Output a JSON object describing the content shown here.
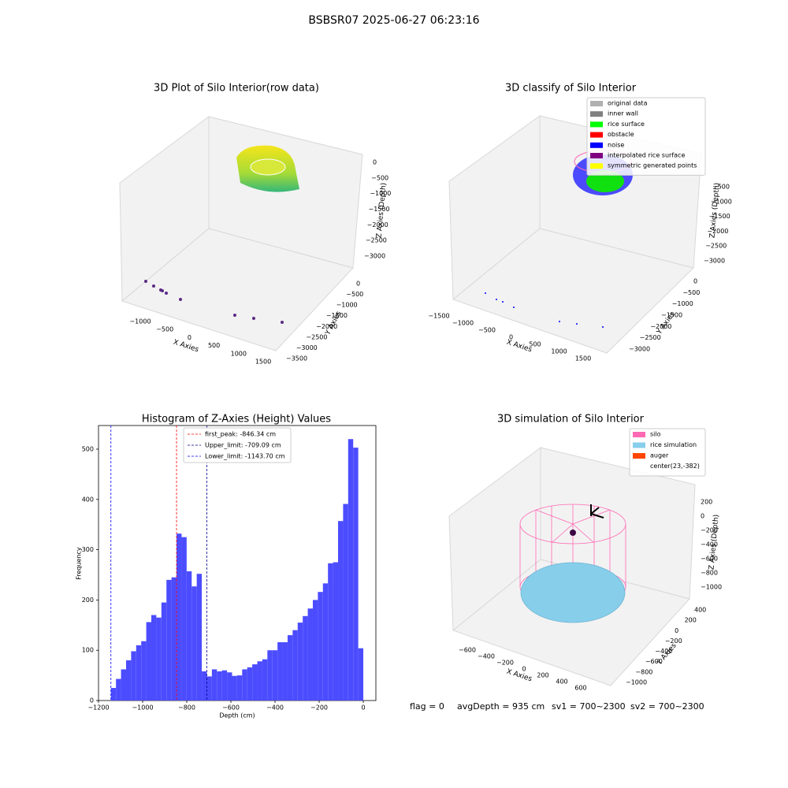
{
  "figure_title": "BSBSR07 2025-06-27 06:23:16",
  "chart_data": [
    {
      "type": "scatter3d",
      "title": "3D Plot of Silo Interior(row data)",
      "xlabel": "X Axies",
      "ylabel": "Y Axies",
      "zlabel": "Z Axies (Depth)",
      "xticks": [
        {
          "value": -1000,
          "label": "−1000"
        },
        {
          "value": -500,
          "label": "−500"
        },
        0,
        500,
        1000,
        1500
      ],
      "yticks": [
        0,
        {
          "value": -500,
          "label": "−500"
        },
        {
          "value": -1000,
          "label": "−1000"
        },
        {
          "value": -1500,
          "label": "−1500"
        },
        {
          "value": -2000,
          "label": "−2000"
        },
        {
          "value": -2500,
          "label": "−2500"
        },
        {
          "value": -3000,
          "label": "−3000"
        },
        {
          "value": -3500,
          "label": "−3500"
        }
      ],
      "zticks": [
        0,
        {
          "value": -500,
          "label": "−500"
        },
        {
          "value": -1000,
          "label": "−1000"
        },
        {
          "value": -1500,
          "label": "−1500"
        },
        {
          "value": -2000,
          "label": "−2000"
        },
        {
          "value": -2500,
          "label": "−2500"
        },
        {
          "value": -3000,
          "label": "−3000"
        }
      ]
    },
    {
      "type": "scatter3d",
      "title": "3D classify of Silo Interior",
      "xlabel": "X Axies",
      "ylabel": "Y Axies",
      "zlabel": "Z Axies (Depth)",
      "xticks": [
        {
          "value": -1500,
          "label": "−1500"
        },
        {
          "value": -1000,
          "label": "−1000"
        },
        {
          "value": -500,
          "label": "−500"
        },
        0,
        500,
        1000,
        1500
      ],
      "yticks": [
        0,
        {
          "value": -500,
          "label": "−500"
        },
        {
          "value": -1000,
          "label": "−1000"
        },
        {
          "value": -1500,
          "label": "−1500"
        },
        {
          "value": -2000,
          "label": "−2000"
        },
        {
          "value": -2500,
          "label": "−2500"
        },
        {
          "value": -3000,
          "label": "−3000"
        }
      ],
      "zticks": [
        {
          "value": -500,
          "label": "−500"
        },
        {
          "value": -1000,
          "label": "−1000"
        },
        {
          "value": -1500,
          "label": "−1500"
        },
        {
          "value": -2000,
          "label": "−2000"
        },
        {
          "value": -2500,
          "label": "−2500"
        },
        {
          "value": -3000,
          "label": "−3000"
        }
      ],
      "legend": [
        {
          "name": "original data",
          "color": "#b0b0b0"
        },
        {
          "name": "inner wall",
          "color": "#808080"
        },
        {
          "name": "rice surface",
          "color": "#00ff00"
        },
        {
          "name": "obstacle",
          "color": "#ff0000"
        },
        {
          "name": "noise",
          "color": "#0000ff"
        },
        {
          "name": "interpolated rice surface",
          "color": "#800080"
        },
        {
          "name": "symmetric generated points",
          "color": "#ffff00"
        }
      ]
    },
    {
      "type": "histogram",
      "title": "Histogram of Z-Axies (Height) Values",
      "xlabel": "Depth (cm)",
      "ylabel": "Frequency",
      "color": "#4c4cff",
      "bins": [
        -1143.7,
        -1120.83,
        -1097.95,
        -1075.08,
        -1052.2,
        -1029.33,
        -1006.46,
        -983.58,
        -960.71,
        -937.83,
        -914.96,
        -892.09,
        -869.21,
        -846.34,
        -823.46,
        -800.59,
        -777.72,
        -754.84,
        -731.97,
        -709.09,
        -686.22,
        -663.35,
        -640.47,
        -617.6,
        -594.72,
        -571.85,
        -548.98,
        -526.1,
        -503.23,
        -480.35,
        -457.48,
        -434.61,
        -411.73,
        -388.86,
        -365.98,
        -343.11,
        -320.24,
        -297.36,
        -274.49,
        -251.61,
        -228.74,
        -205.87,
        -182.99,
        -160.12,
        -137.24,
        -114.37,
        -91.5,
        -68.62,
        -45.75,
        -22.87,
        0
      ],
      "values": [
        25,
        43,
        62,
        80,
        98,
        110,
        118,
        156,
        170,
        165,
        195,
        240,
        245,
        332,
        325,
        257,
        227,
        252,
        58,
        48,
        62,
        58,
        60,
        56,
        49,
        50,
        62,
        66,
        72,
        78,
        82,
        100,
        100,
        116,
        116,
        130,
        140,
        155,
        168,
        183,
        200,
        216,
        233,
        273,
        275,
        357,
        391,
        520,
        503,
        104
      ],
      "xlim": [
        -1200,
        57
      ],
      "ylim": [
        0,
        547
      ],
      "xticks": [
        {
          "value": -1200,
          "label": "−1200"
        },
        {
          "value": -1000,
          "label": "−1000"
        },
        {
          "value": -800,
          "label": "−800"
        },
        {
          "value": -600,
          "label": "−600"
        },
        {
          "value": -400,
          "label": "−400"
        },
        {
          "value": -200,
          "label": "−200"
        },
        0
      ],
      "yticks": [
        0,
        100,
        200,
        300,
        400,
        500
      ],
      "lines": [
        {
          "name": "first_peak: -846.34 cm",
          "value": -846.34,
          "color": "#ff0000"
        },
        {
          "name": "Upper_limit: -709.09 cm",
          "value": -709.09,
          "color": "#00008b"
        },
        {
          "name": "Lower_limit: -1143.70 cm",
          "value": -1143.7,
          "color": "#0000ff"
        }
      ]
    },
    {
      "type": "surface3d",
      "title": "3D simulation of Silo Interior",
      "xlabel": "X Axies",
      "ylabel": "Y Axies",
      "zlabel": "Z Axies (Depth)",
      "xticks": [
        {
          "value": -600,
          "label": "−600"
        },
        {
          "value": -400,
          "label": "−400"
        },
        {
          "value": -200,
          "label": "−200"
        },
        0,
        200,
        400,
        600
      ],
      "yticks": [
        400,
        200,
        0,
        {
          "value": -200,
          "label": "−200"
        },
        {
          "value": -400,
          "label": "−400"
        },
        {
          "value": -600,
          "label": "−600"
        },
        {
          "value": -800,
          "label": "−800"
        },
        {
          "value": -1000,
          "label": "−1000"
        }
      ],
      "zticks": [
        200,
        0,
        {
          "value": -200,
          "label": "−200"
        },
        {
          "value": -400,
          "label": "−400"
        },
        {
          "value": -600,
          "label": "−600"
        },
        {
          "value": -800,
          "label": "−800"
        },
        {
          "value": -1000,
          "label": "−1000"
        }
      ],
      "legend": [
        {
          "name": "silo",
          "color": "#ff69b4"
        },
        {
          "name": "rice simulation",
          "color": "#87ceeb"
        },
        {
          "name": "auger",
          "color": "#ff4500"
        },
        {
          "name": "center(23,-382)"
        }
      ]
    }
  ],
  "footer": [
    "flag = 0",
    "avgDepth = 935 cm",
    "sv1 = 700~2300",
    "sv2 = 700~2300"
  ]
}
